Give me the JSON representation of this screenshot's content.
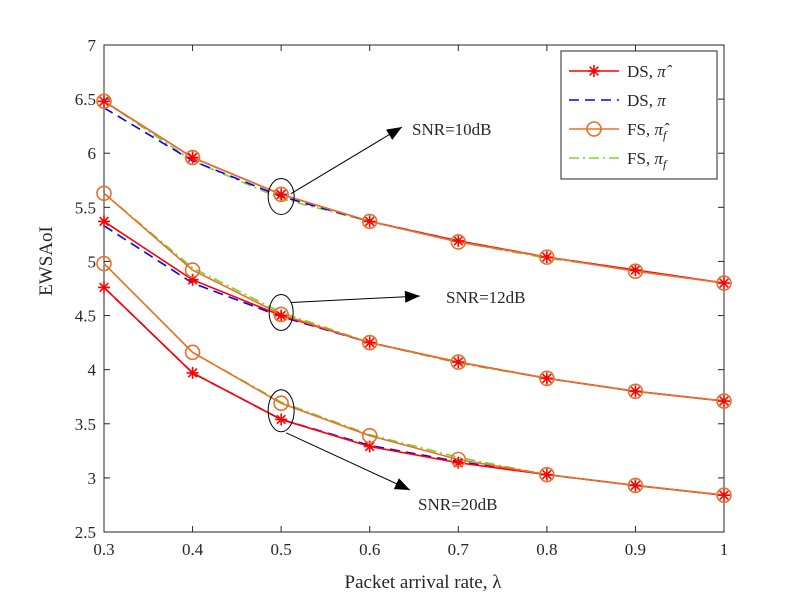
{
  "chart_data": {
    "type": "line",
    "title": "",
    "xlabel": "Packet arrival rate, λ",
    "ylabel": "EWSAoI",
    "xlim": [
      0.3,
      1
    ],
    "ylim": [
      2.5,
      7
    ],
    "xticks": [
      0.3,
      0.4,
      0.5,
      0.6,
      0.7,
      0.8,
      0.9,
      1
    ],
    "xtick_labels": [
      "0.3",
      "0.4",
      "0.5",
      "0.6",
      "0.7",
      "0.8",
      "0.9",
      "1"
    ],
    "yticks": [
      2.5,
      3,
      3.5,
      4,
      4.5,
      5,
      5.5,
      6,
      6.5,
      7
    ],
    "ytick_labels": [
      "2.5",
      "3",
      "3.5",
      "4",
      "4.5",
      "5",
      "5.5",
      "6",
      "6.5",
      "7"
    ],
    "grid": false,
    "legend_position": "top-right",
    "x": [
      0.3,
      0.4,
      0.5,
      0.6,
      0.7,
      0.8,
      0.9,
      1
    ],
    "groups": [
      {
        "label": "SNR=10dB",
        "series": [
          {
            "key": "ds_hat",
            "values": [
              6.48,
              5.96,
              5.62,
              5.37,
              5.19,
              5.04,
              4.92,
              4.8
            ]
          },
          {
            "key": "ds",
            "values": [
              6.42,
              5.93,
              5.6,
              5.37,
              5.19,
              5.04,
              4.92,
              4.8
            ]
          },
          {
            "key": "fs_hat",
            "values": [
              6.48,
              5.96,
              5.62,
              5.37,
              5.18,
              5.04,
              4.91,
              4.8
            ]
          },
          {
            "key": "fs",
            "values": [
              6.48,
              5.93,
              5.58,
              5.37,
              5.18,
              5.03,
              4.92,
              4.8
            ]
          }
        ]
      },
      {
        "label": "SNR=12dB",
        "series": [
          {
            "key": "ds_hat",
            "values": [
              5.37,
              4.83,
              4.5,
              4.25,
              4.07,
              3.92,
              3.8,
              3.71
            ]
          },
          {
            "key": "ds",
            "values": [
              5.33,
              4.8,
              4.49,
              4.25,
              4.07,
              3.92,
              3.8,
              3.71
            ]
          },
          {
            "key": "fs_hat",
            "values": [
              5.63,
              4.92,
              4.51,
              4.25,
              4.07,
              3.92,
              3.8,
              3.71
            ]
          },
          {
            "key": "fs",
            "values": [
              5.63,
              4.94,
              4.53,
              4.25,
              4.06,
              3.92,
              3.8,
              3.71
            ]
          }
        ]
      },
      {
        "label": "SNR=20dB",
        "series": [
          {
            "key": "ds_hat",
            "values": [
              4.76,
              3.97,
              3.54,
              3.29,
              3.14,
              3.03,
              2.93,
              2.84
            ]
          },
          {
            "key": "ds",
            "values": [
              4.76,
              3.97,
              3.54,
              3.3,
              3.15,
              3.03,
              2.93,
              2.84
            ]
          },
          {
            "key": "fs_hat",
            "values": [
              4.98,
              4.16,
              3.69,
              3.39,
              3.17,
              3.03,
              2.93,
              2.84
            ]
          },
          {
            "key": "fs",
            "values": [
              4.98,
              4.16,
              3.7,
              3.4,
              3.19,
              3.03,
              2.93,
              2.84
            ]
          }
        ]
      }
    ],
    "series_styles": {
      "ds_hat": {
        "name": "DS, π̂",
        "legend_main": "DS, ",
        "legend_symbol": "π̂",
        "legend_sub": "",
        "color": "#ff0000",
        "dash": "solid",
        "marker": "asterisk"
      },
      "ds": {
        "name": "DS, π",
        "legend_main": "DS, ",
        "legend_symbol": "π",
        "legend_sub": "",
        "color": "#0000ff",
        "dash": "dashed",
        "marker": "none"
      },
      "fs_hat": {
        "name": "FS, π̂f",
        "legend_main": "FS, ",
        "legend_symbol": "π̂",
        "legend_sub": "f",
        "color": "#e8702a",
        "dash": "solid",
        "marker": "circle"
      },
      "fs": {
        "name": "FS, πf",
        "legend_main": "FS, ",
        "legend_symbol": "π",
        "legend_sub": "f",
        "color": "#77d62a",
        "dash": "dashdot",
        "marker": "none"
      }
    },
    "legend_order": [
      "ds_hat",
      "ds",
      "fs_hat",
      "fs"
    ],
    "annotations": [
      {
        "group": 0,
        "text": "SNR=10dB",
        "at_x": 0.5
      },
      {
        "group": 1,
        "text": "SNR=12dB",
        "at_x": 0.5
      },
      {
        "group": 2,
        "text": "SNR=20dB",
        "at_x": 0.5
      }
    ]
  }
}
